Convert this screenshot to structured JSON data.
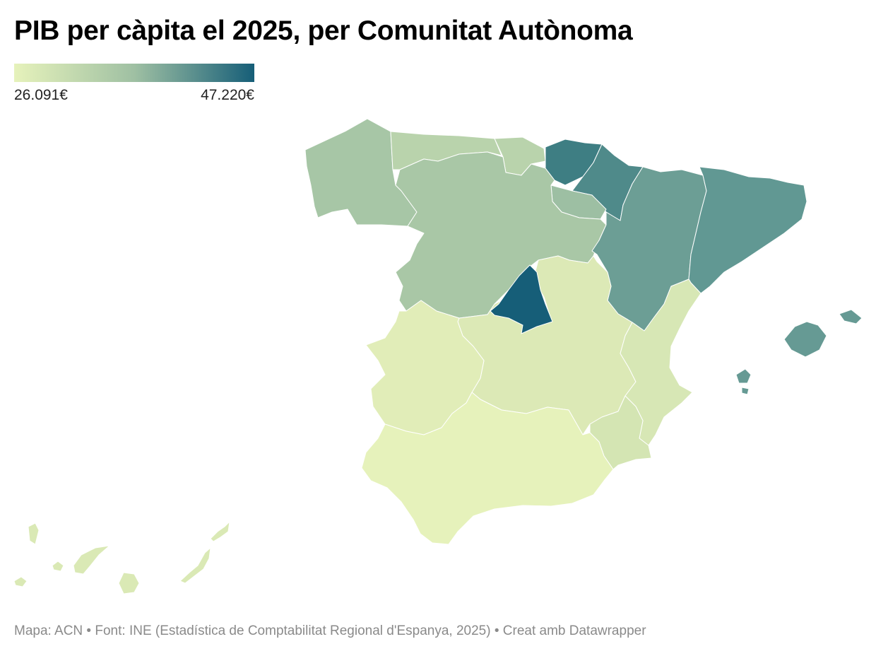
{
  "title": "PIB per càpita el 2025, per Comunitat Autònoma",
  "legend": {
    "min_label": "26.091€",
    "max_label": "47.220€",
    "min_value": 26091,
    "max_value": 47220,
    "color_low": "#e6f2bb",
    "color_mid": "#9fc0a3",
    "color_high": "#165e78"
  },
  "footer": "Mapa: ACN • Font: INE (Estadística de Comptabilitat Regional d'Espanya, 2025) • Creat amb Datawrapper",
  "regions": {
    "galicia": {
      "color": "#a7c6a6"
    },
    "asturias": {
      "color": "#b9d3ac"
    },
    "cantabria": {
      "color": "#b9d3ac"
    },
    "pais_basc": {
      "color": "#3e7e83"
    },
    "navarra": {
      "color": "#4f8a8a"
    },
    "la_rioja": {
      "color": "#9dbfa3"
    },
    "castella_lleo": {
      "color": "#a9c7a6"
    },
    "arago": {
      "color": "#6c9e95"
    },
    "catalunya": {
      "color": "#619893"
    },
    "madrid": {
      "color": "#165e78"
    },
    "castella_la_manxa": {
      "color": "#dce9b6"
    },
    "extremadura": {
      "color": "#e1edb8"
    },
    "comunitat_valenciana": {
      "color": "#d7e7b5"
    },
    "murcia": {
      "color": "#d4e5b3"
    },
    "andalusia": {
      "color": "#e6f2bb"
    },
    "illes_balears": {
      "color": "#669a94"
    },
    "canaries": {
      "color": "#dae9b5"
    }
  }
}
